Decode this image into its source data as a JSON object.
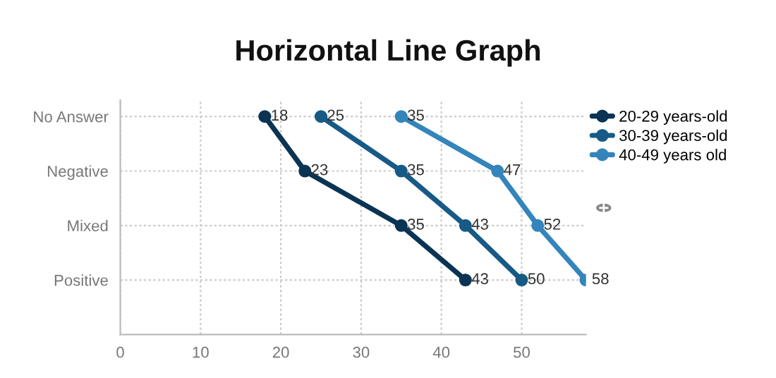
{
  "chart_data": {
    "type": "line",
    "title": "Horizontal Line Graph",
    "orientation": "horizontal",
    "categories": [
      "No Answer",
      "Negative",
      "Mixed",
      "Positive"
    ],
    "series": [
      {
        "name": "20-29 years-old",
        "color": "#0b3454",
        "values": [
          18,
          23,
          35,
          43
        ]
      },
      {
        "name": "30-39 years-old",
        "color": "#175a86",
        "values": [
          25,
          35,
          43,
          50
        ]
      },
      {
        "name": "40-49 years old",
        "color": "#3385bb",
        "values": [
          35,
          47,
          52,
          58
        ]
      }
    ],
    "xlim": [
      0,
      58
    ],
    "xticks": [
      0,
      10,
      20,
      30,
      40,
      50
    ],
    "grid": true,
    "legend": "right",
    "marker": "circle",
    "line_style": "solid",
    "data_labels": true
  }
}
